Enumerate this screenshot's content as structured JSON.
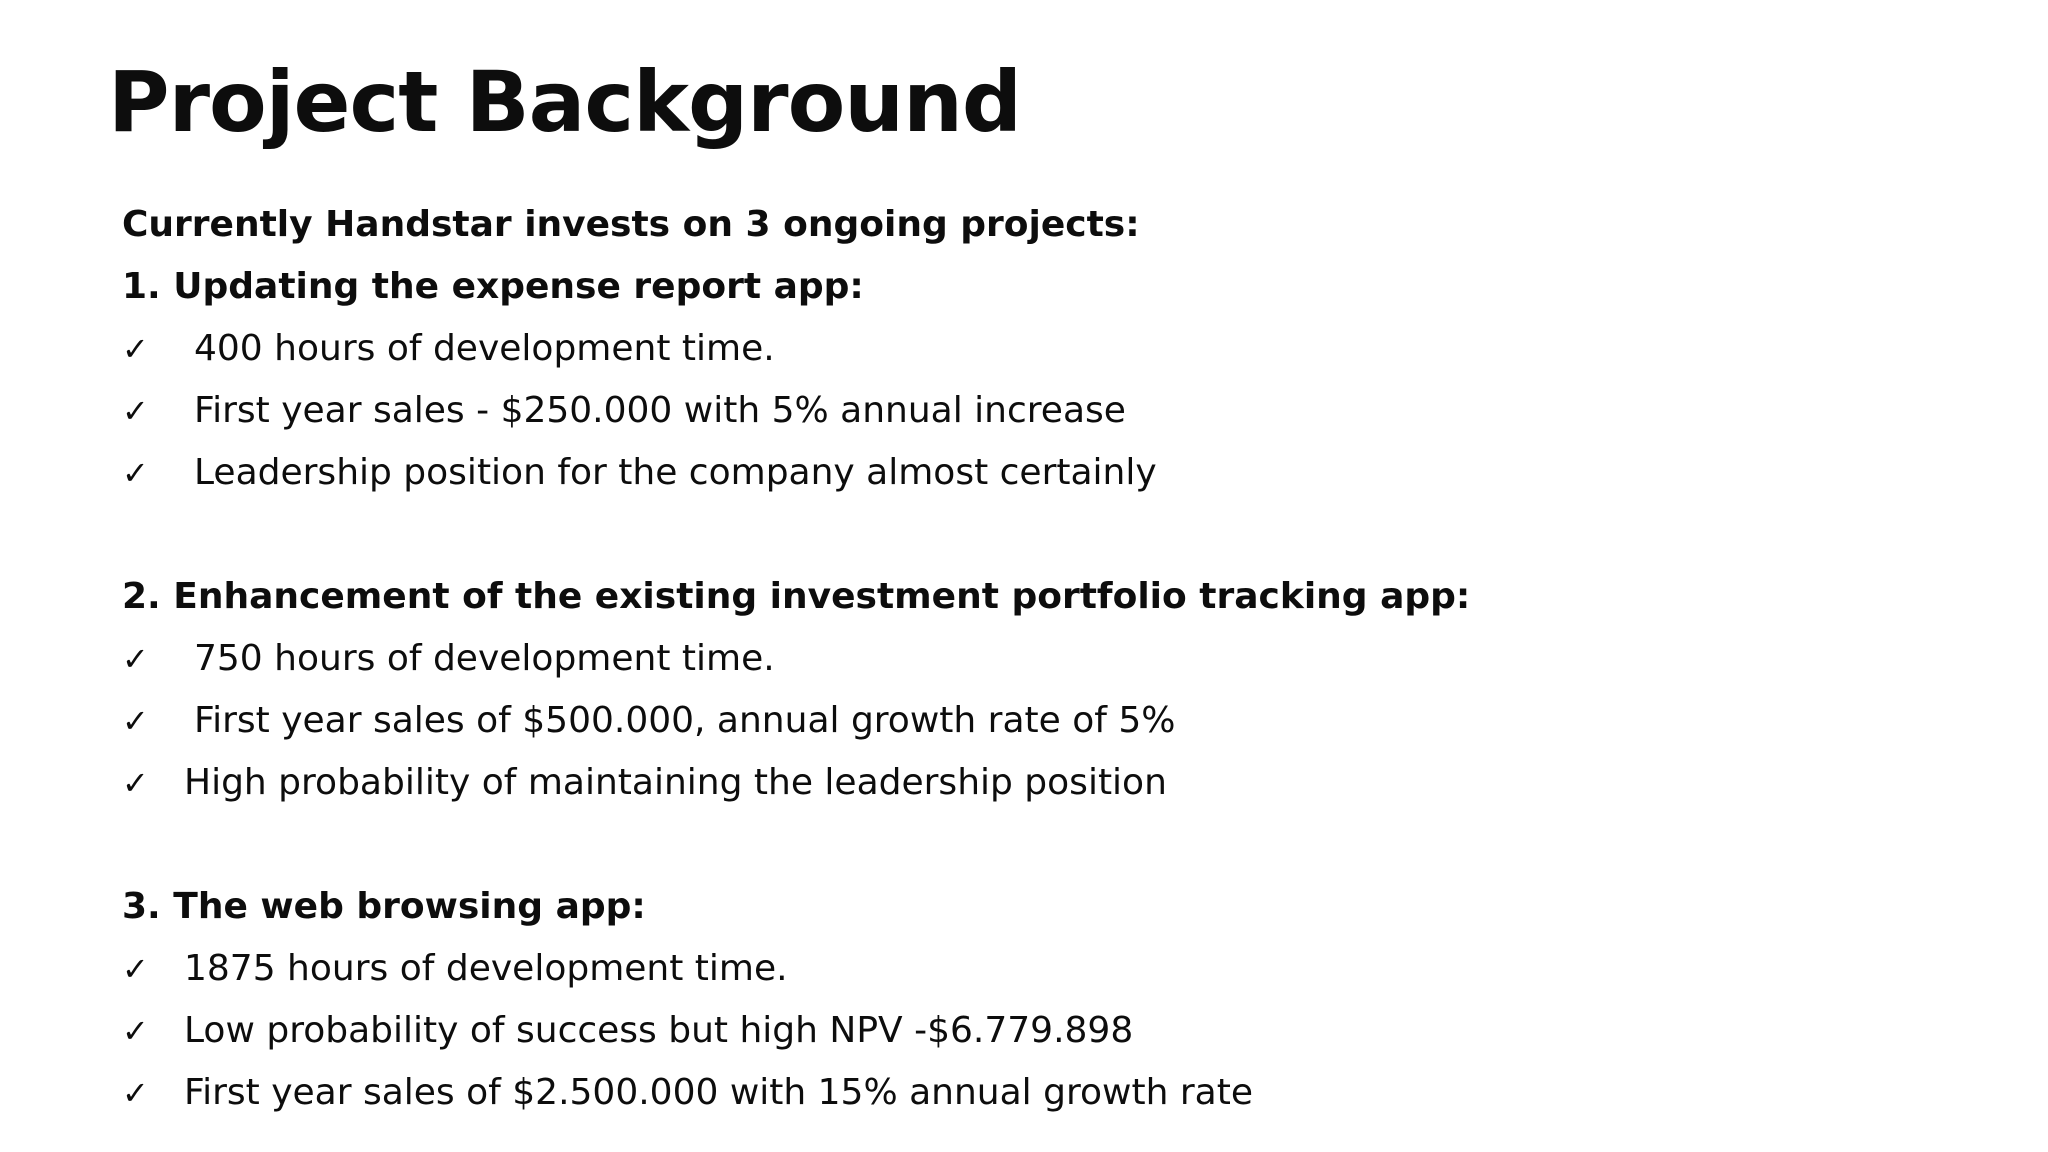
{
  "title": "Project Background",
  "intro": "Currently Handstar invests on 3 ongoing projects:",
  "check_symbol": "✓",
  "projects": [
    {
      "heading": "1.  Updating the expense report app:",
      "points": [
        "400 hours of development time.",
        "First year sales - $250.000 with 5% annual increase",
        "Leadership position for the company almost certainly"
      ]
    },
    {
      "heading": "2. Enhancement of the existing investment portfolio tracking app:",
      "points": [
        "750 hours of development time.",
        "First year sales of $500.000, annual growth rate of 5%",
        "High probability of maintaining the leadership position"
      ]
    },
    {
      "heading": "3. The web browsing app:",
      "points": [
        "1875 hours of development time.",
        "Low probability of success but high NPV -$6.779.898",
        "First year sales of $2.500.000 with 15% annual growth rate"
      ]
    }
  ]
}
